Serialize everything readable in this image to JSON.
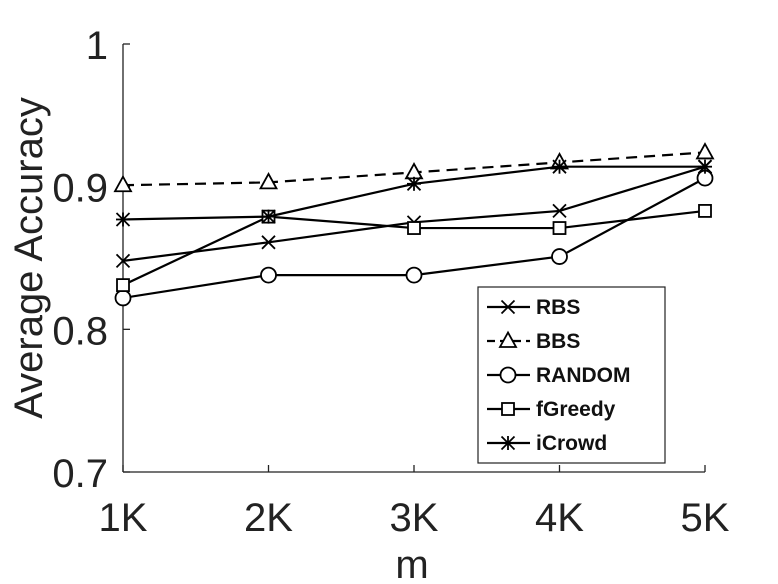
{
  "chart_data": {
    "type": "line",
    "title": "",
    "xlabel": "m",
    "ylabel": "Average Accuracy",
    "categories": [
      "1K",
      "2K",
      "3K",
      "4K",
      "5K"
    ],
    "x": [
      1,
      2,
      3,
      4,
      5
    ],
    "ylim": [
      0.7,
      1.0
    ],
    "yticks": [
      0.7,
      0.8,
      0.9,
      1.0
    ],
    "ytick_labels": [
      "0.7",
      "0.8",
      "0.9",
      "1"
    ],
    "grid": false,
    "legend_position": "bottom-right",
    "series": [
      {
        "name": "RBS",
        "marker": "x",
        "dash": "solid",
        "color": "#000000",
        "values": [
          0.848,
          0.861,
          0.875,
          0.883,
          0.914
        ]
      },
      {
        "name": "BBS",
        "marker": "triangle",
        "dash": "dashed",
        "color": "#000000",
        "values": [
          0.901,
          0.903,
          0.91,
          0.917,
          0.924
        ]
      },
      {
        "name": "RANDOM",
        "marker": "circle",
        "dash": "solid",
        "color": "#000000",
        "values": [
          0.822,
          0.838,
          0.838,
          0.851,
          0.906
        ]
      },
      {
        "name": "fGreedy",
        "marker": "square",
        "dash": "solid",
        "color": "#000000",
        "values": [
          0.831,
          0.879,
          0.871,
          0.871,
          0.883
        ]
      },
      {
        "name": "iCrowd",
        "marker": "asterisk",
        "dash": "solid",
        "color": "#000000",
        "values": [
          0.877,
          0.879,
          0.902,
          0.914,
          0.914
        ]
      }
    ]
  }
}
